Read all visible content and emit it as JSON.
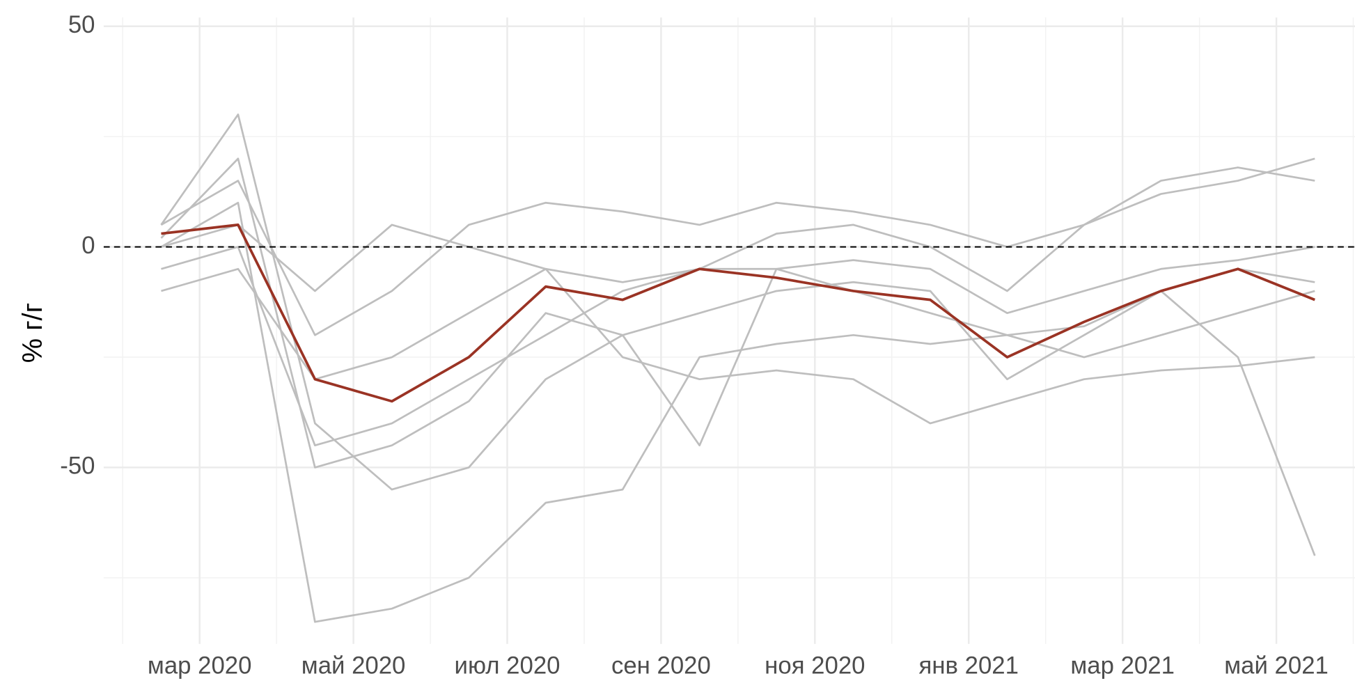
{
  "chart_data": {
    "type": "line",
    "y_label": "% г/г",
    "x": [
      "2020-02",
      "2020-03",
      "2020-04",
      "2020-05",
      "2020-06",
      "2020-07",
      "2020-08",
      "2020-09",
      "2020-10",
      "2020-11",
      "2020-12",
      "2021-01",
      "2021-02",
      "2021-03",
      "2021-04",
      "2021-05"
    ],
    "xlim": [
      "2020-02",
      "2021-06"
    ],
    "xticks": [
      {
        "value": "2020-03",
        "label": "мар 2020"
      },
      {
        "value": "2020-05",
        "label": "май 2020"
      },
      {
        "value": "2020-07",
        "label": "июл 2020"
      },
      {
        "value": "2020-09",
        "label": "сен 2020"
      },
      {
        "value": "2020-11",
        "label": "ноя 2020"
      },
      {
        "value": "2021-01",
        "label": "янв 2021"
      },
      {
        "value": "2021-03",
        "label": "мар 2021"
      },
      {
        "value": "2021-05",
        "label": "май 2021"
      }
    ],
    "ylim": [
      -90,
      52
    ],
    "yticks": [
      -50,
      0,
      50
    ],
    "grid": true,
    "hline": 0,
    "series": [
      {
        "color": "#bebebe",
        "values": [
          5,
          30,
          -40,
          -55,
          -50,
          -30,
          -20,
          -15,
          -10,
          -8,
          -10,
          -30,
          -20,
          -10,
          -5,
          -8
        ]
      },
      {
        "color": "#bebebe",
        "values": [
          0,
          10,
          -85,
          -82,
          -75,
          -58,
          -55,
          -25,
          -22,
          -20,
          -22,
          -20,
          -18,
          -10,
          -25,
          -70
        ]
      },
      {
        "color": "#bebebe",
        "values": [
          5,
          15,
          -20,
          -10,
          5,
          10,
          8,
          5,
          10,
          8,
          5,
          0,
          5,
          15,
          18,
          15
        ]
      },
      {
        "color": "#bebebe",
        "values": [
          -5,
          0,
          -45,
          -40,
          -30,
          -20,
          -10,
          -5,
          -5,
          -3,
          -5,
          -15,
          -10,
          -5,
          -3,
          0
        ]
      },
      {
        "color": "#bebebe",
        "values": [
          0,
          5,
          -10,
          5,
          0,
          -5,
          -8,
          -5,
          3,
          5,
          0,
          -10,
          5,
          12,
          15,
          20
        ]
      },
      {
        "color": "#bebebe",
        "values": [
          -10,
          -5,
          -30,
          -25,
          -15,
          -5,
          -25,
          -30,
          -28,
          -30,
          -40,
          -35,
          -30,
          -28,
          -27,
          -25
        ]
      },
      {
        "color": "#bebebe",
        "values": [
          2,
          20,
          -50,
          -45,
          -35,
          -15,
          -20,
          -45,
          -5,
          -10,
          -15,
          -20,
          -25,
          -20,
          -15,
          -10
        ]
      },
      {
        "color": "#9a3324",
        "values": [
          3,
          5,
          -30,
          -35,
          -25,
          -9,
          -12,
          -5,
          -7,
          -10,
          -12,
          -25,
          -17,
          -10,
          -5,
          -12
        ]
      }
    ]
  }
}
